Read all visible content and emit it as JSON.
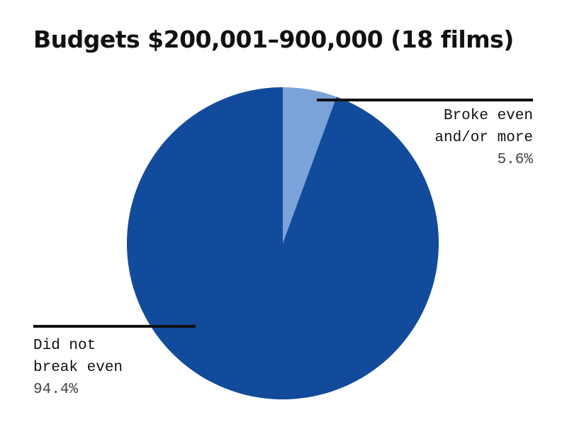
{
  "chart_data": {
    "type": "pie",
    "title": "Budgets $200,001–900,000 (18 films)",
    "categories": [
      "Broke even and/or more",
      "Did not break even"
    ],
    "values": [
      5.6,
      94.4
    ],
    "value_labels": [
      "5.6%",
      "94.4%"
    ],
    "colors": [
      "#7aa3d9",
      "#124b9b"
    ]
  }
}
